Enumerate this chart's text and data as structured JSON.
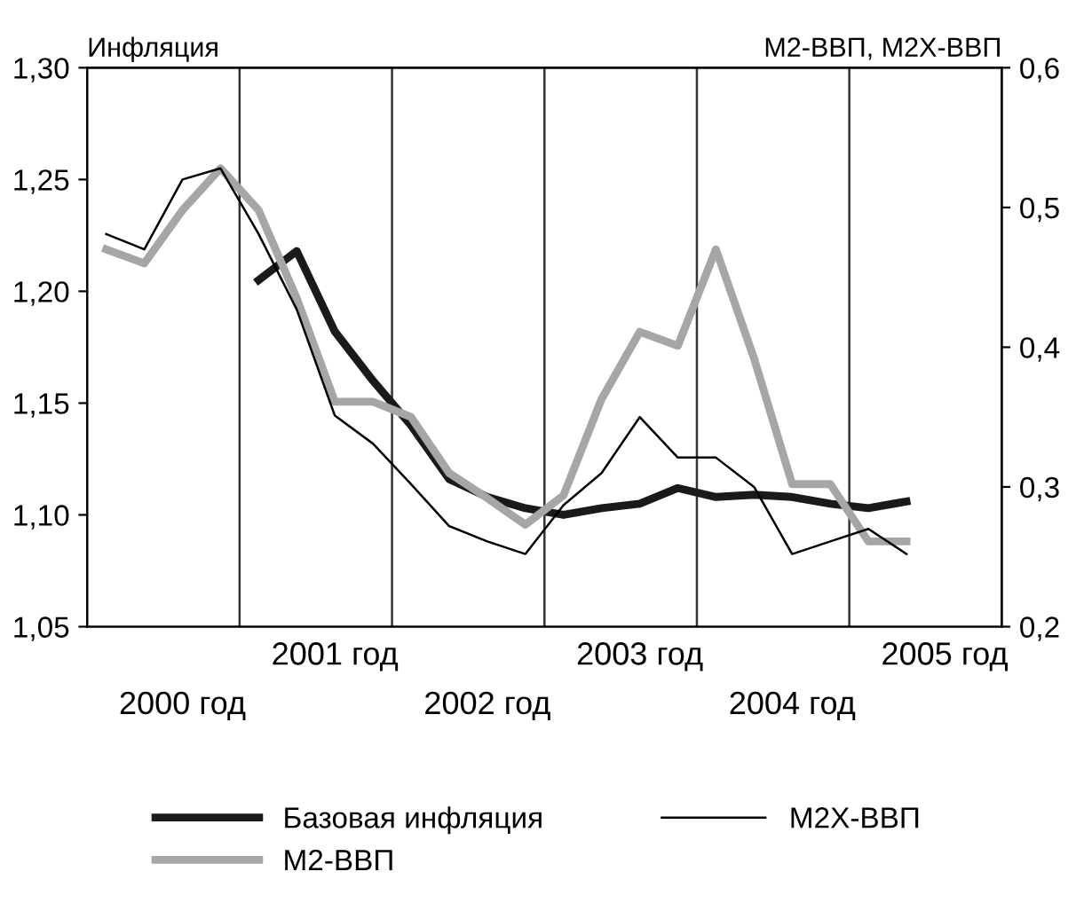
{
  "chart_data": {
    "type": "line",
    "ylabel": "Инфляция",
    "y2label": "М2-ВВП, М2Х-ВВП",
    "categories": [
      null,
      null,
      "2000 год",
      null,
      null,
      null,
      "2001 год",
      null,
      null,
      null,
      "2002 год",
      null,
      null,
      null,
      "2003 год",
      null,
      null,
      null,
      "2004 год",
      null,
      null,
      null,
      "2005 год",
      null
    ],
    "series": [
      {
        "name": "Базовая инфляция",
        "color": "#1a1a1a",
        "values": [
          null,
          null,
          null,
          null,
          1.205,
          1.218,
          1.182,
          1.16,
          1.14,
          1.116,
          1.108,
          1.103,
          1.1,
          1.103,
          1.105,
          1.112,
          1.108,
          1.109,
          1.108,
          1.105,
          1.103,
          1.106,
          null,
          null
        ]
      },
      {
        "name": "М2-ВВП",
        "color": "#a6a6a6",
        "axis": "y2",
        "values": [
          0.47,
          0.46,
          0.498,
          0.528,
          0.498,
          0.435,
          0.361,
          0.361,
          0.35,
          0.31,
          0.292,
          0.273,
          0.294,
          0.363,
          0.411,
          0.401,
          0.47,
          0.392,
          0.302,
          0.302,
          0.261,
          0.261,
          null,
          null
        ]
      },
      {
        "name": "М2Х-ВВП",
        "color": "#000000",
        "axis": "y2",
        "values": [
          0.481,
          0.47,
          0.52,
          0.528,
          0.481,
          0.427,
          0.351,
          0.331,
          0.302,
          0.272,
          0.261,
          0.252,
          0.287,
          0.31,
          0.35,
          0.321,
          0.321,
          0.3,
          0.252,
          0.261,
          0.27,
          0.252,
          null,
          null
        ]
      }
    ],
    "ylim": [
      1.05,
      1.3
    ],
    "yticks": [
      {
        "value": 1.05,
        "label": "1,05"
      },
      {
        "value": 1.1,
        "label": "1,10"
      },
      {
        "value": 1.15,
        "label": "1,15"
      },
      {
        "value": 1.2,
        "label": "1,20"
      },
      {
        "value": 1.25,
        "label": "1,25"
      },
      {
        "value": 1.3,
        "label": "1,30"
      }
    ],
    "y2lim": [
      0.2,
      0.6
    ],
    "y2ticks": [
      {
        "value": 0.2,
        "label": "0,2"
      },
      {
        "value": 0.3,
        "label": "0,3"
      },
      {
        "value": 0.4,
        "label": "0,4"
      },
      {
        "value": 0.5,
        "label": "0,5"
      },
      {
        "value": 0.6,
        "label": "0,6"
      }
    ],
    "grid": false,
    "legend": "bottom",
    "marker": "none",
    "line_style": "solid"
  }
}
